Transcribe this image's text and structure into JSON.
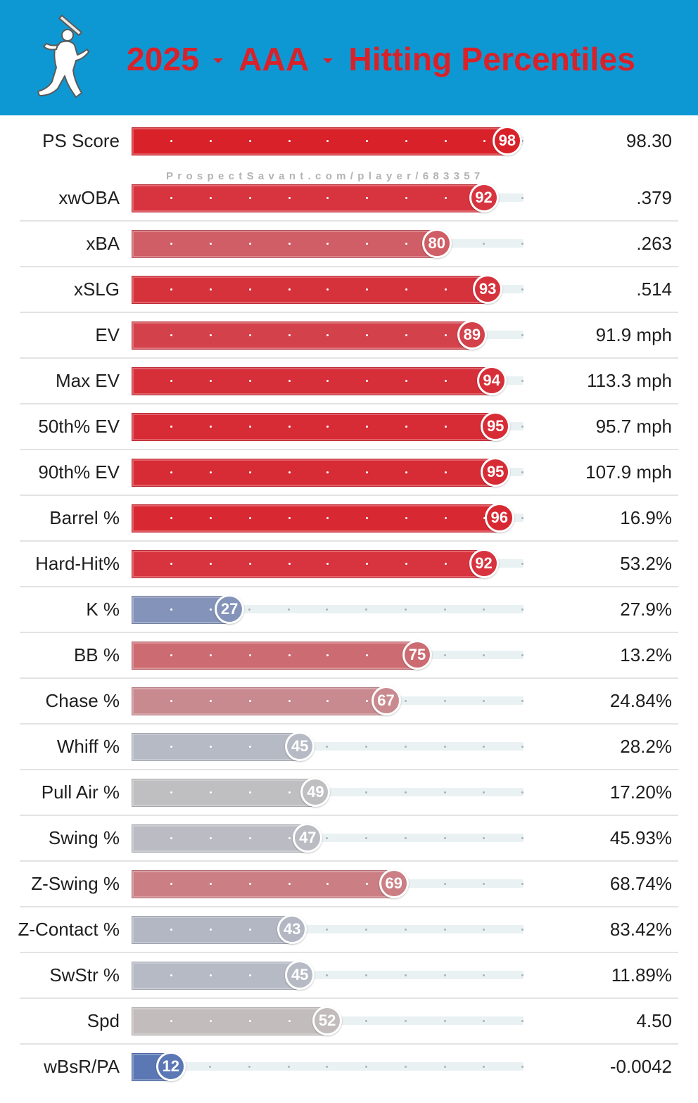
{
  "header": {
    "season": "2025",
    "level": "AAA",
    "title": "Hitting Percentiles",
    "logo_icon": "batter-silhouette-icon",
    "caret_icon": "caret-down-icon",
    "colors": {
      "background": "#0e98d3",
      "title": "#d92129"
    }
  },
  "watermark": "ProspectSavant.com/player/683357",
  "rows": [
    {
      "label": "PS Score",
      "percentile": 98,
      "value": "98.30",
      "color": "#d92129"
    },
    {
      "label": "xwOBA",
      "percentile": 92,
      "value": ".379",
      "color": "#d7343f"
    },
    {
      "label": "xBA",
      "percentile": 80,
      "value": ".263",
      "color": "#cf5e66"
    },
    {
      "label": "xSLG",
      "percentile": 93,
      "value": ".514",
      "color": "#d6323c"
    },
    {
      "label": "EV",
      "percentile": 89,
      "value": "91.9 mph",
      "color": "#d3414b"
    },
    {
      "label": "Max EV",
      "percentile": 94,
      "value": "113.3 mph",
      "color": "#d62f39"
    },
    {
      "label": "50th% EV",
      "percentile": 95,
      "value": "95.7 mph",
      "color": "#d72c36"
    },
    {
      "label": "90th% EV",
      "percentile": 95,
      "value": "107.9 mph",
      "color": "#d72c36"
    },
    {
      "label": "Barrel %",
      "percentile": 96,
      "value": "16.9%",
      "color": "#d82933"
    },
    {
      "label": "Hard-Hit%",
      "percentile": 92,
      "value": "53.2%",
      "color": "#d7343f"
    },
    {
      "label": "K %",
      "percentile": 27,
      "value": "27.9%",
      "color": "#8493b9"
    },
    {
      "label": "BB %",
      "percentile": 75,
      "value": "13.2%",
      "color": "#cc6c72"
    },
    {
      "label": "Chase %",
      "percentile": 67,
      "value": "24.84%",
      "color": "#c98a8f"
    },
    {
      "label": "Whiff %",
      "percentile": 45,
      "value": "28.2%",
      "color": "#b6bac4"
    },
    {
      "label": "Pull Air %",
      "percentile": 49,
      "value": "17.20%",
      "color": "#bfbfc1"
    },
    {
      "label": "Swing %",
      "percentile": 47,
      "value": "45.93%",
      "color": "#bbbcc3"
    },
    {
      "label": "Z-Swing %",
      "percentile": 69,
      "value": "68.74%",
      "color": "#cb7f85"
    },
    {
      "label": "Z-Contact %",
      "percentile": 43,
      "value": "83.42%",
      "color": "#b2b7c3"
    },
    {
      "label": "SwStr %",
      "percentile": 45,
      "value": "11.89%",
      "color": "#b6bac4"
    },
    {
      "label": "Spd",
      "percentile": 52,
      "value": "4.50",
      "color": "#c3bcbd"
    },
    {
      "label": "wBsR/PA",
      "percentile": 12,
      "value": "-0.0042",
      "color": "#5b78b5"
    }
  ]
}
